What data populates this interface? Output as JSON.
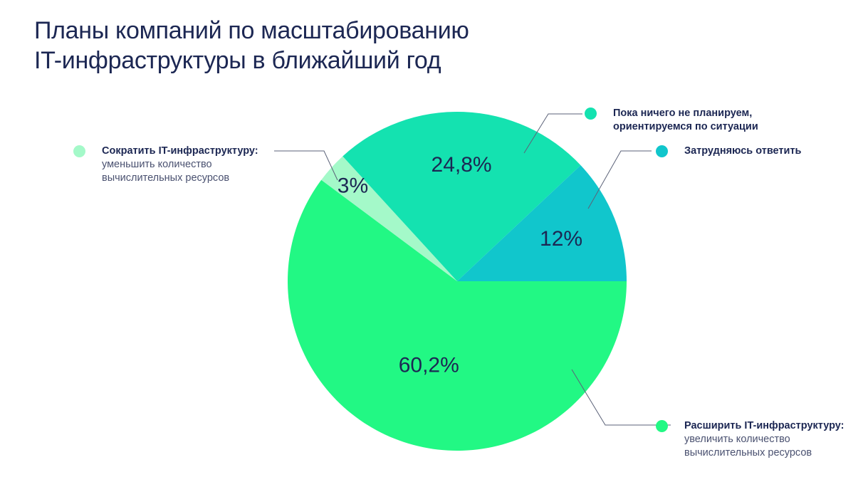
{
  "title_lines": [
    "Планы компаний по масштабированию",
    "IT-инфраструктуры в ближайший год"
  ],
  "chart_data": {
    "type": "pie",
    "title": "Планы компаний по масштабированию IT-инфраструктуры в ближайший год",
    "slices": [
      {
        "label_main": "Расширить IT-инфраструктуру:",
        "label_sub": "увеличить количество вычислительных ресурсов",
        "value": 60.2,
        "value_label": "60,2%",
        "color": "#22f884"
      },
      {
        "label_main": "Сократить IT-инфраструктуру:",
        "label_sub": "уменьшить количество вычислительных ресурсов",
        "value": 3,
        "value_label": "3%",
        "color": "#a4f9c9"
      },
      {
        "label_main": "Пока ничего не планируем, ориентируемся по ситуации",
        "label_sub": "",
        "value": 24.8,
        "value_label": "24,8%",
        "color": "#14e2b0"
      },
      {
        "label_main": "Затрудняюсь ответить",
        "label_sub": "",
        "value": 12,
        "value_label": "12%",
        "color": "#11c6cc"
      }
    ]
  }
}
